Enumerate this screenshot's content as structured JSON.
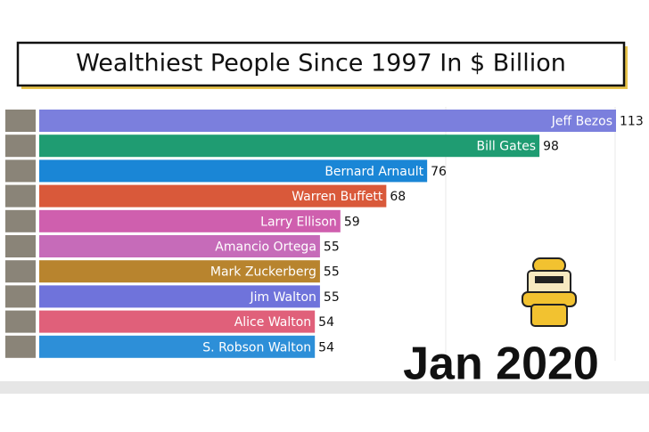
{
  "chart_data": {
    "type": "bar",
    "orientation": "horizontal",
    "title": "Wealthiest People Since 1997 In $ Billion",
    "date": "Jan 2020",
    "categories": [
      "Jeff Bezos",
      "Bill Gates",
      "Bernard Arnault",
      "Warren Buffett",
      "Larry Ellison",
      "Amancio Ortega",
      "Mark Zuckerberg",
      "Jim Walton",
      "Alice Walton",
      "S. Robson Walton"
    ],
    "values": [
      113,
      98,
      76,
      68,
      59,
      55,
      55,
      55,
      54,
      54
    ],
    "colors": [
      "#7b7fdd",
      "#1f9c72",
      "#1a86d6",
      "#d9593a",
      "#cf5fae",
      "#c66bb9",
      "#b8842e",
      "#6f73db",
      "#e0607a",
      "#2d8fd8"
    ]
  }
}
